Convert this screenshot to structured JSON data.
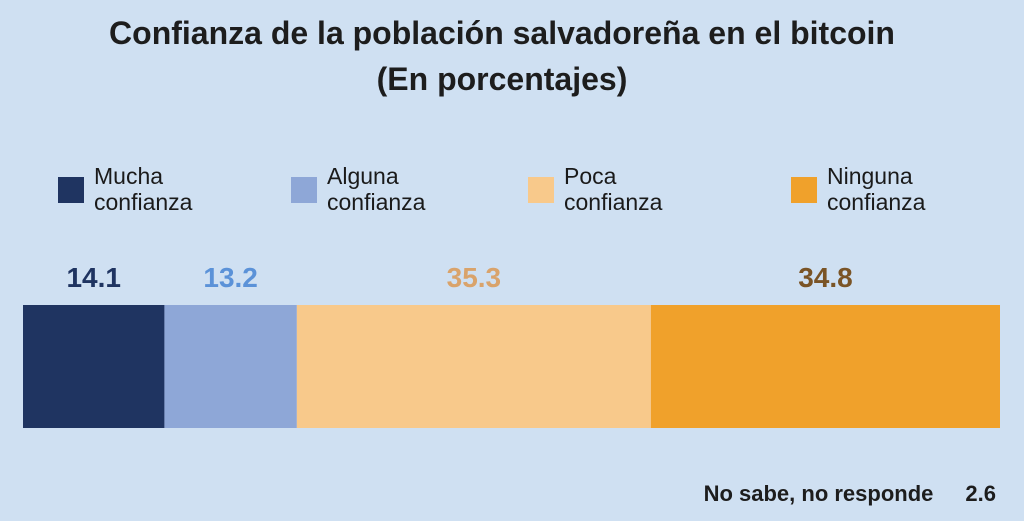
{
  "chart_data": {
    "type": "bar",
    "orientation": "horizontal-stacked",
    "title": "Confianza de la población salvadoreña en el bitcoin",
    "subtitle": "(En porcentajes)",
    "legend_position": "top",
    "grid": false,
    "xlim": [
      0,
      100
    ],
    "series": [
      {
        "name": "Mucha confianza",
        "legend_lines": [
          "Mucha",
          "confianza"
        ],
        "value": 14.1,
        "value_label": "14.1",
        "color": "#1f3461",
        "label_color": "#1f3461"
      },
      {
        "name": "Alguna confianza",
        "legend_lines": [
          "Alguna",
          "confianza"
        ],
        "value": 13.2,
        "value_label": "13.2",
        "color": "#8ea7d7",
        "label_color": "#5b92d8"
      },
      {
        "name": "Poca confianza",
        "legend_lines": [
          "Poca",
          "confianza"
        ],
        "value": 35.3,
        "value_label": "35.3",
        "color": "#f8c98b",
        "label_color": "#d9a36b"
      },
      {
        "name": "Ninguna confianza",
        "legend_lines": [
          "Ninguna",
          "confianza"
        ],
        "value": 34.8,
        "value_label": "34.8",
        "color": "#f0a12b",
        "label_color": "#7a5426"
      }
    ],
    "footnote": {
      "label": "No sabe, no responde",
      "value": 2.6,
      "value_label": "2.6"
    }
  }
}
